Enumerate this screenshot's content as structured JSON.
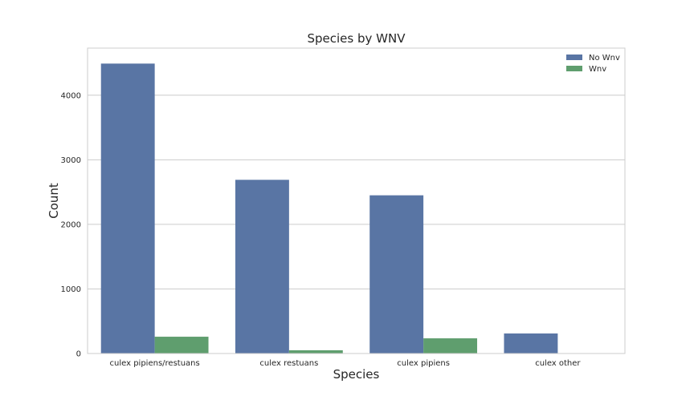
{
  "chart_data": {
    "type": "bar",
    "title": "Species by WNV",
    "xlabel": "Species",
    "ylabel": "Count",
    "categories": [
      "culex pipiens/restuans",
      "culex restuans",
      "culex pipiens",
      "culex other"
    ],
    "series": [
      {
        "name": "No Wnv",
        "color": "#5975a4",
        "values": [
          4490,
          2690,
          2450,
          310
        ]
      },
      {
        "name": "Wnv",
        "color": "#5f9e6e",
        "values": [
          260,
          50,
          235,
          0
        ]
      }
    ],
    "ylim": [
      0,
      4730
    ],
    "yticks": [
      0,
      1000,
      2000,
      3000,
      4000
    ],
    "grid": true,
    "legend_position": "top-right"
  }
}
